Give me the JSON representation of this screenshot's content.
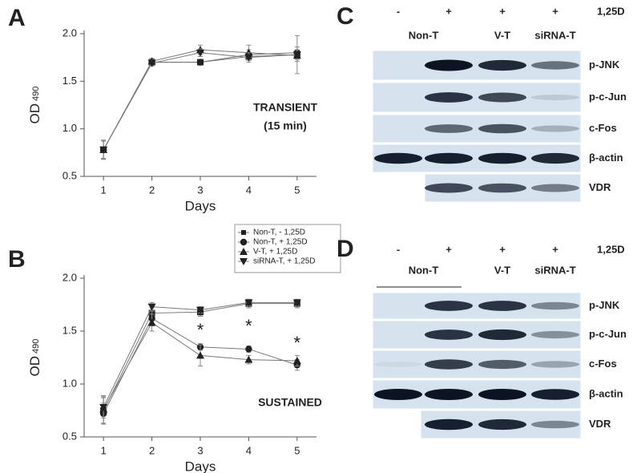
{
  "chart_data": [
    {
      "type": "line",
      "letter": "A",
      "x": [
        1,
        2,
        3,
        4,
        5
      ],
      "xlim": [
        0.6,
        5.4
      ],
      "xticks": [
        1,
        2,
        3,
        4,
        5
      ],
      "ylim": [
        0.5,
        2.0
      ],
      "yticks": [
        {
          "value": 0.5,
          "label": "0.5"
        },
        {
          "value": 1.0,
          "label": "1.0"
        },
        1.5,
        {
          "value": 2.0,
          "label": "2.0"
        }
      ],
      "x_label": "Days",
      "y_label": "OD",
      "y_label_sub": "490",
      "annotations": [
        {
          "text": "TRANSIENT"
        },
        {
          "text": "(15 min)"
        }
      ],
      "legend": false,
      "series": [
        {
          "marker": "square",
          "color": "#222",
          "values": [
            0.78,
            1.7,
            1.7,
            1.76,
            1.78
          ],
          "errors": [
            0.1,
            0.03,
            0.03,
            0.04,
            0.05
          ]
        },
        {
          "marker": "circle",
          "color": "#222",
          "values": [
            0.78,
            1.7,
            1.7,
            1.78,
            1.8
          ],
          "errors": [
            0.09,
            0.03,
            0.03,
            0.05,
            0.06
          ]
        },
        {
          "marker": "triangle-up",
          "color": "#222",
          "values": [
            0.78,
            1.71,
            1.83,
            1.8,
            1.77
          ],
          "errors": [
            0.1,
            0.03,
            0.05,
            0.08,
            0.06
          ]
        },
        {
          "marker": "triangle-down",
          "color": "#222",
          "values": [
            0.78,
            1.69,
            1.8,
            1.75,
            1.78
          ],
          "errors": [
            0.1,
            0.03,
            0.04,
            0.05,
            0.2
          ]
        }
      ]
    },
    {
      "type": "line",
      "letter": "B",
      "x": [
        1,
        2,
        3,
        4,
        5
      ],
      "xlim": [
        0.6,
        5.4
      ],
      "xticks": [
        1,
        2,
        3,
        4,
        5
      ],
      "ylim": [
        0.5,
        2.0
      ],
      "yticks": [
        {
          "value": 0.5,
          "label": "0.5"
        },
        {
          "value": 1.0,
          "label": "1.0"
        },
        1.5,
        {
          "value": 2.0,
          "label": "2.0"
        }
      ],
      "x_label": "Days",
      "y_label": "OD",
      "y_label_sub": "490",
      "annotations": [
        {
          "text": "SUSTAINED"
        }
      ],
      "markers_text": [
        {
          "text": "*",
          "x": 3
        },
        {
          "text": "*",
          "x": 4
        },
        {
          "text": "*",
          "x": 5
        }
      ],
      "legend": true,
      "series": [
        {
          "name": "Non-T, - 1,25D",
          "marker": "square",
          "color": "#222",
          "values": [
            0.75,
            1.67,
            1.68,
            1.76,
            1.76
          ],
          "errors": [
            0.12,
            0.05,
            0.04,
            0.04,
            0.04
          ]
        },
        {
          "name": "Non-T, + 1,25D",
          "marker": "circle",
          "color": "#222",
          "values": [
            0.72,
            1.62,
            1.35,
            1.33,
            1.18
          ],
          "errors": [
            0.1,
            0.07,
            0.03,
            0.03,
            0.05
          ]
        },
        {
          "name": "V-T, + 1,25D",
          "marker": "triangle-up",
          "color": "#222",
          "values": [
            0.76,
            1.58,
            1.27,
            1.23,
            1.22
          ],
          "errors": [
            0.13,
            0.08,
            0.1,
            0.04,
            0.05
          ]
        },
        {
          "name": "siRNA-T, + 1,25D",
          "marker": "triangle-down",
          "color": "#222",
          "values": [
            0.78,
            1.73,
            1.7,
            1.77,
            1.77
          ],
          "errors": [
            0.1,
            0.04,
            0.03,
            0.03,
            0.03
          ]
        }
      ]
    }
  ],
  "blots": [
    {
      "letter": "C",
      "treatments": [
        "-",
        "+",
        "+",
        "+"
      ],
      "treatment_label": "1,25D",
      "groups": [
        "Non-T",
        "V-T",
        "siRNA-T"
      ],
      "rows": [
        "p-JNK",
        "p-c-Jun",
        "c-Fos",
        "β-actin",
        "VDR"
      ]
    },
    {
      "letter": "D",
      "treatments": [
        "-",
        "+",
        "+",
        "+"
      ],
      "treatment_label": "1,25D",
      "groups": [
        "Non-T",
        "V-T",
        "siRNA-T"
      ],
      "rows": [
        "p-JNK",
        "p-c-Jun",
        "c-Fos",
        "β-actin",
        "VDR"
      ]
    }
  ]
}
